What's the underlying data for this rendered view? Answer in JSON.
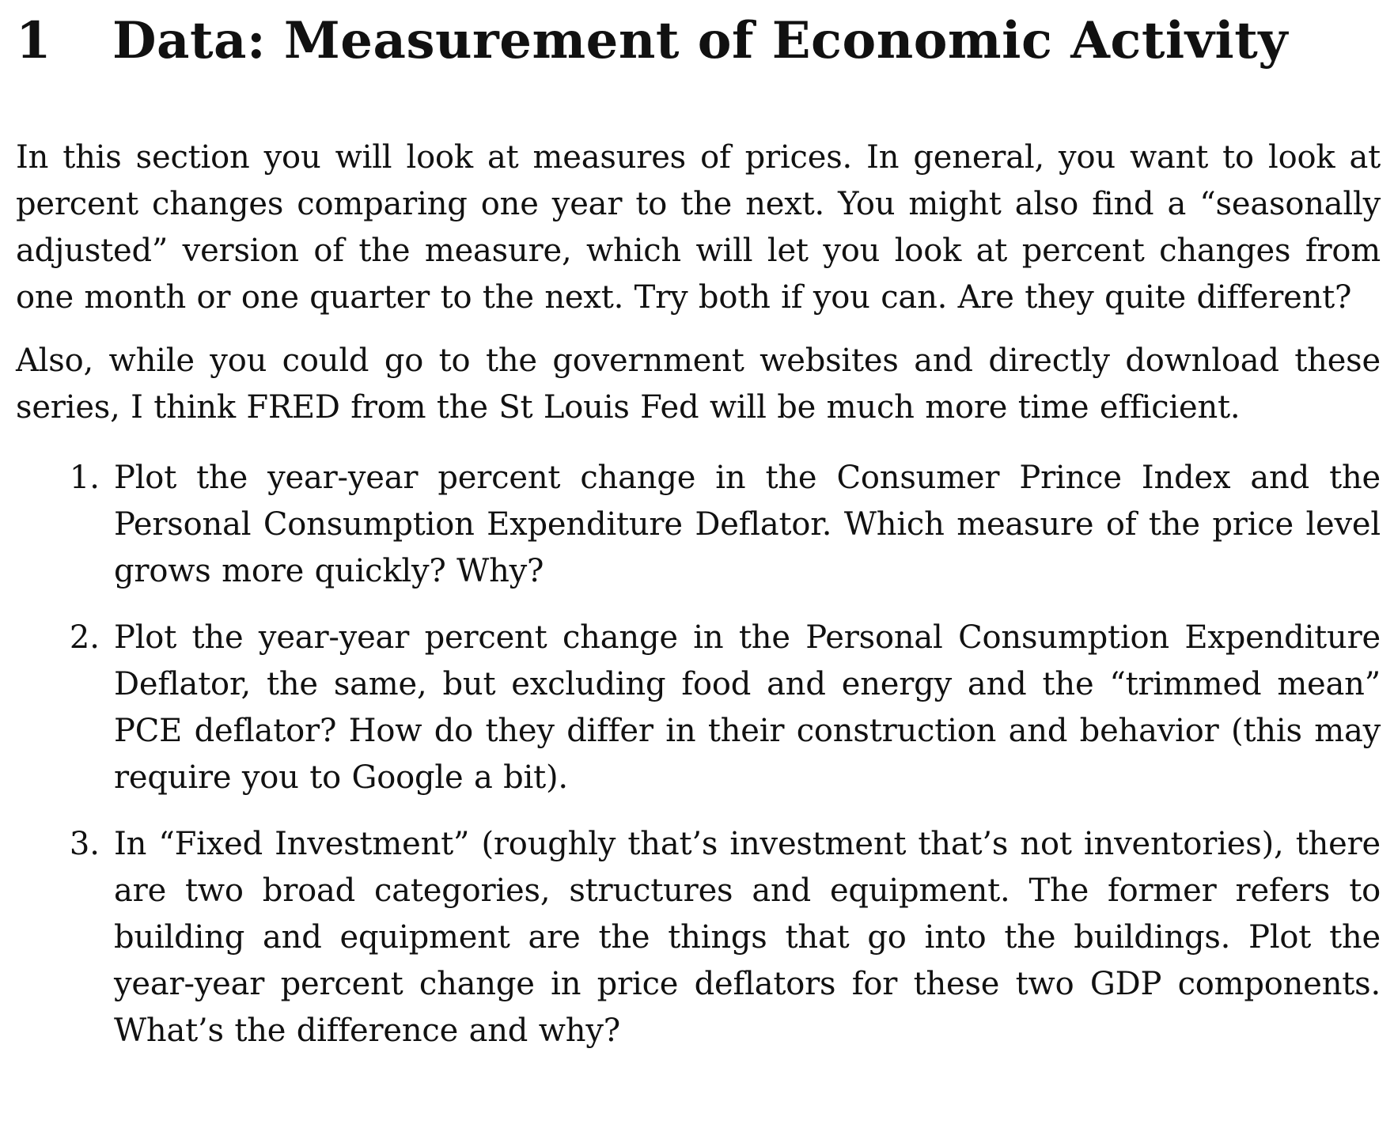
{
  "section": {
    "number": "1",
    "title": "Data: Measurement of Economic Activity"
  },
  "paragraphs": [
    "In this section you will look at measures of prices. In general, you want to look at percent changes comparing one year to the next. You might also find a “seasonally adjusted” version of the measure, which will let you look at percent changes from one month or one quarter to the next. Try both if you can. Are they quite different?",
    "Also, while you could go to the government websites and directly download these series, I think FRED from the St Louis Fed will be much more time efficient."
  ],
  "questions": [
    {
      "number": "1.",
      "text": "Plot the year-year percent change in the Consumer Prince Index and the Personal Consumption Expenditure Deflator. Which measure of the price level grows more quickly? Why?"
    },
    {
      "number": "2.",
      "text": "Plot the year-year percent change in the Personal Consumption Expenditure Deflator, the same, but excluding food and energy and the “trimmed mean” PCE deflator? How do they differ in their construction and behavior (this may require you to Google a bit)."
    },
    {
      "number": "3.",
      "text": "In “Fixed Investment” (roughly that’s investment that’s not inventories), there are two broad categories, structures and equipment. The former refers to building and equipment are the things that go into the buildings. Plot the year-year percent change in price deflators for these two GDP components. What’s the difference and why?"
    }
  ]
}
